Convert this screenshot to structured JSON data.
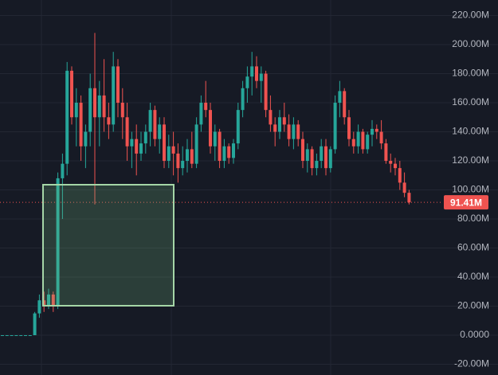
{
  "chart_data": {
    "type": "candlestick",
    "up_color": "#26a69a",
    "down_color": "#ef5350",
    "ylim": [
      -27.4,
      230.7
    ],
    "yticks": [
      {
        "value": 220,
        "label": "220.00M"
      },
      {
        "value": 200,
        "label": "200.00M"
      },
      {
        "value": 180,
        "label": "180.00M"
      },
      {
        "value": 160,
        "label": "160.00M"
      },
      {
        "value": 140,
        "label": "140.00M"
      },
      {
        "value": 120,
        "label": "120.00M"
      },
      {
        "value": 100,
        "label": "100.00M"
      },
      {
        "value": 80,
        "label": "80.00M"
      },
      {
        "value": 60,
        "label": "60.00M"
      },
      {
        "value": 40,
        "label": "40.00M"
      },
      {
        "value": 20,
        "label": "20.00M"
      },
      {
        "value": 0,
        "label": "0.0000"
      },
      {
        "value": -20,
        "label": "-20.00M"
      }
    ],
    "grid": true,
    "last_price": {
      "value": 91.41,
      "label": "91.41M"
    },
    "open": [
      0,
      0,
      0,
      0,
      0,
      0,
      0,
      0,
      15,
      24,
      20,
      28,
      20,
      108,
      118,
      182,
      150,
      160,
      130,
      140,
      170,
      150,
      165,
      150,
      145,
      185,
      160,
      150,
      130,
      135,
      125,
      132,
      140,
      155,
      135,
      145,
      120,
      130,
      125,
      115,
      120,
      128,
      118,
      145,
      160,
      155,
      130,
      140,
      120,
      130,
      122,
      132,
      155,
      170,
      178,
      185,
      175,
      180,
      155,
      145,
      140,
      150,
      145,
      135,
      145,
      135,
      120,
      128,
      115,
      120,
      130,
      115,
      128,
      160,
      168,
      150,
      135,
      130,
      140,
      128,
      138,
      142,
      140,
      132,
      120,
      118,
      115,
      105,
      98
    ],
    "high": [
      0,
      0,
      0,
      0,
      0,
      0,
      0,
      16,
      28,
      30,
      32,
      30,
      112,
      125,
      188,
      185,
      170,
      165,
      145,
      180,
      208,
      175,
      190,
      160,
      195,
      190,
      170,
      160,
      140,
      145,
      140,
      145,
      160,
      158,
      150,
      150,
      138,
      140,
      132,
      130,
      135,
      140,
      150,
      165,
      175,
      160,
      145,
      142,
      135,
      132,
      135,
      160,
      175,
      185,
      195,
      192,
      185,
      182,
      165,
      150,
      155,
      160,
      152,
      150,
      148,
      140,
      132,
      130,
      125,
      135,
      135,
      130,
      165,
      175,
      170,
      155,
      140,
      145,
      142,
      140,
      148,
      145,
      148,
      135,
      125,
      122,
      120,
      112,
      100
    ],
    "low": [
      0,
      0,
      0,
      0,
      0,
      0,
      0,
      0,
      12,
      16,
      18,
      16,
      18,
      80,
      110,
      145,
      130,
      120,
      115,
      130,
      90,
      130,
      140,
      135,
      140,
      150,
      135,
      120,
      115,
      110,
      120,
      125,
      130,
      130,
      125,
      115,
      115,
      110,
      105,
      110,
      112,
      115,
      115,
      140,
      150,
      125,
      120,
      115,
      115,
      118,
      118,
      128,
      150,
      160,
      165,
      170,
      160,
      150,
      140,
      130,
      135,
      140,
      130,
      128,
      130,
      115,
      112,
      110,
      110,
      115,
      110,
      112,
      125,
      150,
      145,
      130,
      125,
      125,
      125,
      125,
      130,
      135,
      128,
      118,
      112,
      110,
      100,
      95,
      90
    ],
    "close": [
      0,
      0,
      0,
      0,
      0,
      0,
      0,
      15,
      24,
      20,
      28,
      20,
      108,
      118,
      182,
      150,
      160,
      130,
      140,
      170,
      150,
      165,
      150,
      145,
      185,
      160,
      150,
      130,
      135,
      125,
      132,
      140,
      155,
      135,
      145,
      120,
      130,
      125,
      115,
      120,
      128,
      118,
      145,
      160,
      155,
      130,
      140,
      120,
      130,
      122,
      132,
      155,
      170,
      178,
      185,
      175,
      180,
      155,
      145,
      140,
      150,
      145,
      135,
      145,
      135,
      120,
      128,
      115,
      120,
      130,
      115,
      128,
      160,
      168,
      150,
      135,
      130,
      140,
      128,
      138,
      142,
      140,
      132,
      120,
      118,
      115,
      105,
      98,
      91.41
    ]
  }
}
